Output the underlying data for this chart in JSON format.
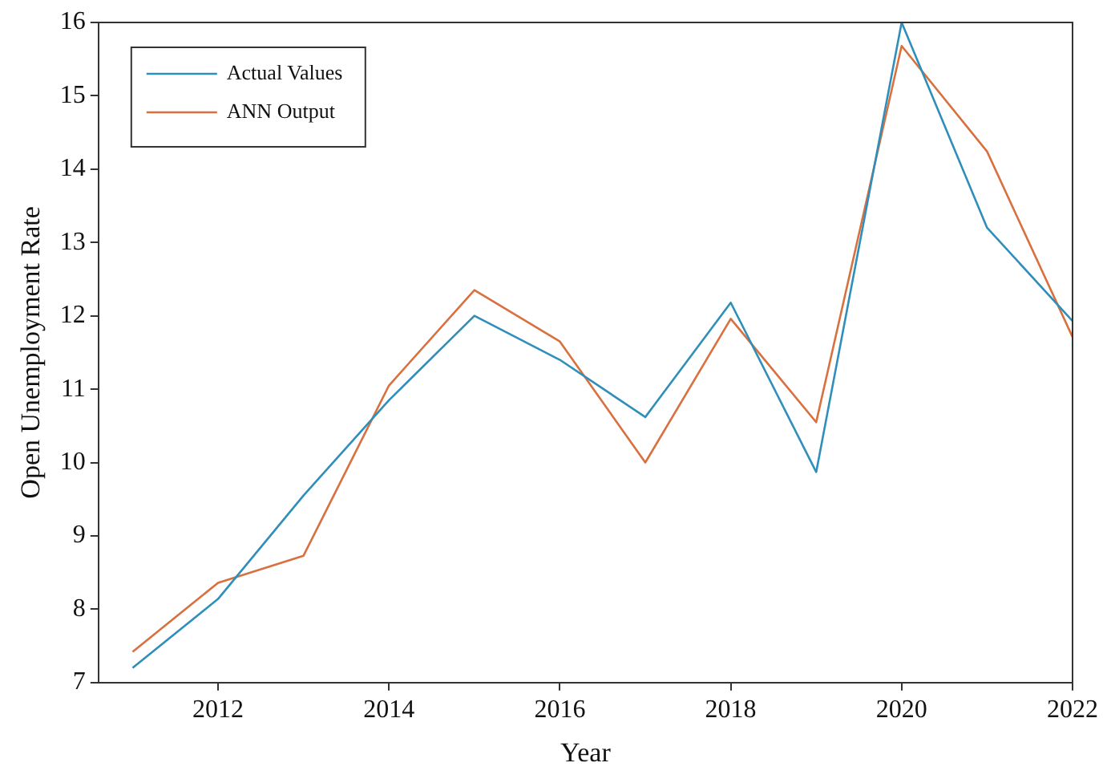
{
  "chart_data": {
    "type": "line",
    "xlabel": "Year",
    "ylabel": "Open Unemployment Rate",
    "x": [
      2011,
      2012,
      2013,
      2014,
      2015,
      2016,
      2017,
      2018,
      2019,
      2020,
      2021,
      2022
    ],
    "series": [
      {
        "name": "Actual Values",
        "color": "#2f8fba",
        "values": [
          7.2,
          8.14,
          9.55,
          10.85,
          12.0,
          11.4,
          10.62,
          12.18,
          9.87,
          16.0,
          13.2,
          11.93
        ]
      },
      {
        "name": "ANN Output",
        "color": "#d9703f",
        "values": [
          7.42,
          8.36,
          8.73,
          11.05,
          12.35,
          11.65,
          10.0,
          11.96,
          10.55,
          15.68,
          14.24,
          11.71
        ]
      }
    ],
    "xlim": [
      2010.6,
      2022
    ],
    "xticks": [
      2012,
      2014,
      2016,
      2018,
      2020,
      2022
    ],
    "ylim": [
      7,
      16
    ],
    "yticks": [
      7,
      8,
      9,
      10,
      11,
      12,
      13,
      14,
      15,
      16
    ],
    "grid": false,
    "legend": "top left",
    "marker": "none",
    "line_style": "solid"
  }
}
